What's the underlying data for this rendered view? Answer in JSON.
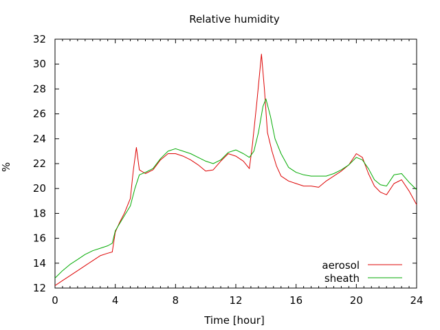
{
  "chart_data": {
    "type": "line",
    "title": "Relative humidity",
    "xlabel": "Time [hour]",
    "ylabel": "%",
    "xlim": [
      0,
      24
    ],
    "ylim": [
      12,
      32
    ],
    "xticks": [
      0,
      4,
      8,
      12,
      16,
      20,
      24
    ],
    "yticks": [
      12,
      14,
      16,
      18,
      20,
      22,
      24,
      26,
      28,
      30,
      32
    ],
    "grid": false,
    "legend_position": "bottom-right",
    "series": [
      {
        "name": "aerosol",
        "color": "#dd0000",
        "x": [
          0,
          0.5,
          1,
          1.5,
          2,
          2.5,
          3,
          3.5,
          3.8,
          4,
          4.3,
          4.6,
          5,
          5.2,
          5.4,
          5.6,
          6,
          6.5,
          7,
          7.5,
          8,
          8.5,
          9,
          9.5,
          10,
          10.5,
          11,
          11.5,
          12,
          12.5,
          12.9,
          13.1,
          13.4,
          13.7,
          13.9,
          14.1,
          14.4,
          14.7,
          15,
          15.5,
          16,
          16.5,
          17,
          17.5,
          18,
          18.5,
          19,
          19.5,
          20,
          20.4,
          20.8,
          21.2,
          21.6,
          22,
          22.5,
          23,
          23.5,
          24
        ],
        "y": [
          12.2,
          12.6,
          13.0,
          13.4,
          13.8,
          14.2,
          14.6,
          14.8,
          14.9,
          16.5,
          17.3,
          18.0,
          19.2,
          21.5,
          23.3,
          21.5,
          21.2,
          21.5,
          22.3,
          22.8,
          22.8,
          22.6,
          22.3,
          21.9,
          21.4,
          21.5,
          22.2,
          22.8,
          22.6,
          22.2,
          21.6,
          23.5,
          27.0,
          30.8,
          28.0,
          24.5,
          23.0,
          21.8,
          21.0,
          20.6,
          20.4,
          20.2,
          20.2,
          20.1,
          20.6,
          21.0,
          21.4,
          21.9,
          22.8,
          22.5,
          21.2,
          20.2,
          19.7,
          19.5,
          20.4,
          20.7,
          19.8,
          18.7
        ]
      },
      {
        "name": "sheath",
        "color": "#00aa00",
        "x": [
          0,
          0.5,
          1,
          1.5,
          2,
          2.5,
          3,
          3.5,
          3.8,
          4,
          4.3,
          4.6,
          5,
          5.3,
          5.6,
          6,
          6.5,
          7,
          7.5,
          8,
          8.5,
          9,
          9.5,
          10,
          10.5,
          11,
          11.5,
          12,
          12.5,
          12.9,
          13.2,
          13.5,
          13.8,
          14.0,
          14.3,
          14.6,
          15,
          15.5,
          16,
          16.5,
          17,
          17.5,
          18,
          18.5,
          19,
          19.5,
          20,
          20.4,
          20.8,
          21.2,
          21.6,
          22,
          22.5,
          23,
          23.5,
          24
        ],
        "y": [
          12.8,
          13.4,
          13.9,
          14.3,
          14.7,
          15.0,
          15.2,
          15.4,
          15.6,
          16.6,
          17.2,
          17.8,
          18.6,
          20.0,
          21.1,
          21.3,
          21.6,
          22.4,
          23.0,
          23.2,
          23.0,
          22.8,
          22.5,
          22.2,
          22.0,
          22.3,
          22.9,
          23.1,
          22.8,
          22.5,
          23.0,
          24.5,
          26.6,
          27.2,
          25.8,
          24.0,
          22.8,
          21.7,
          21.3,
          21.1,
          21.0,
          21.0,
          21.0,
          21.2,
          21.5,
          21.9,
          22.5,
          22.3,
          21.6,
          20.7,
          20.3,
          20.2,
          21.1,
          21.2,
          20.5,
          19.9
        ]
      }
    ]
  }
}
